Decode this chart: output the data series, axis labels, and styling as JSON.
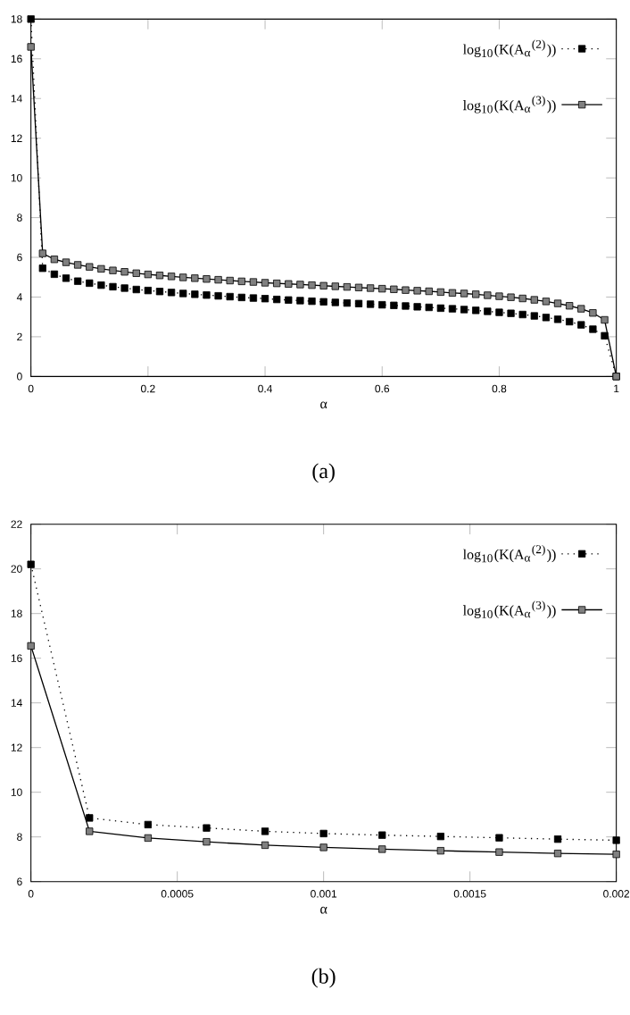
{
  "chart_data": [
    {
      "type": "line",
      "xlabel": "α",
      "annotations": [
        "(a)"
      ],
      "xlim": [
        0,
        1
      ],
      "ylim": [
        0,
        18
      ],
      "xticks": [
        0,
        0.2,
        0.4,
        0.6,
        0.8,
        1
      ],
      "yticks": [
        0,
        2,
        4,
        6,
        8,
        10,
        12,
        14,
        16,
        18
      ],
      "legend": "top right",
      "grid": false,
      "marker": "square",
      "x": [
        0,
        0.02,
        0.04,
        0.06,
        0.08,
        0.1,
        0.12,
        0.14,
        0.16,
        0.18,
        0.2,
        0.22,
        0.24,
        0.26,
        0.28,
        0.3,
        0.32,
        0.34,
        0.36,
        0.38,
        0.4,
        0.42,
        0.44,
        0.46,
        0.48,
        0.5,
        0.52,
        0.54,
        0.56,
        0.58,
        0.6,
        0.62,
        0.64,
        0.66,
        0.68,
        0.7,
        0.72,
        0.74,
        0.76,
        0.78,
        0.8,
        0.82,
        0.84,
        0.86,
        0.88,
        0.9,
        0.92,
        0.94,
        0.96,
        0.98,
        1
      ],
      "series": [
        {
          "name": "log$_{10}$(K(A$_{α}$$^{(2)}$))",
          "color": "#000000",
          "line_style": "dotted",
          "values": [
            18.0,
            5.45,
            5.15,
            4.95,
            4.8,
            4.7,
            4.6,
            4.52,
            4.45,
            4.38,
            4.33,
            4.28,
            4.23,
            4.18,
            4.14,
            4.1,
            4.06,
            4.02,
            3.98,
            3.95,
            3.92,
            3.88,
            3.85,
            3.82,
            3.79,
            3.76,
            3.73,
            3.7,
            3.67,
            3.64,
            3.61,
            3.58,
            3.55,
            3.51,
            3.48,
            3.44,
            3.41,
            3.37,
            3.33,
            3.28,
            3.23,
            3.18,
            3.12,
            3.05,
            2.97,
            2.88,
            2.76,
            2.6,
            2.38,
            2.05,
            0
          ]
        },
        {
          "name": "log$_{10}$(K(A$_{α}$$^{(3)}$))",
          "color": "#808080",
          "line_style": "solid",
          "values": [
            16.6,
            6.2,
            5.9,
            5.75,
            5.62,
            5.52,
            5.42,
            5.34,
            5.27,
            5.2,
            5.14,
            5.09,
            5.04,
            4.99,
            4.95,
            4.91,
            4.87,
            4.83,
            4.79,
            4.76,
            4.72,
            4.69,
            4.66,
            4.63,
            4.6,
            4.57,
            4.54,
            4.51,
            4.48,
            4.45,
            4.42,
            4.39,
            4.35,
            4.32,
            4.29,
            4.25,
            4.21,
            4.18,
            4.14,
            4.09,
            4.04,
            3.99,
            3.93,
            3.86,
            3.78,
            3.68,
            3.56,
            3.41,
            3.2,
            2.85,
            0
          ]
        }
      ]
    },
    {
      "type": "line",
      "xlabel": "α",
      "annotations": [
        "(b)"
      ],
      "xlim": [
        0,
        0.002
      ],
      "ylim": [
        6,
        22
      ],
      "xticks": [
        0,
        0.0005,
        0.001,
        0.0015,
        0.002
      ],
      "yticks": [
        6,
        8,
        10,
        12,
        14,
        16,
        18,
        20,
        22
      ],
      "legend": "top right",
      "grid": false,
      "marker": "square",
      "x": [
        0,
        0.0002,
        0.0004,
        0.0006,
        0.0008,
        0.001,
        0.0012,
        0.0014,
        0.0016,
        0.0018,
        0.002
      ],
      "series": [
        {
          "name": "log$_{10}$(K(A$_{α}$$^{(2)}$))",
          "color": "#000000",
          "line_style": "dotted",
          "values": [
            20.2,
            8.85,
            8.55,
            8.4,
            8.25,
            8.15,
            8.08,
            8.02,
            7.96,
            7.9,
            7.85
          ]
        },
        {
          "name": "log$_{10}$(K(A$_{α}$$^{(3)}$))",
          "color": "#808080",
          "line_style": "solid",
          "values": [
            16.55,
            8.25,
            7.95,
            7.78,
            7.63,
            7.53,
            7.45,
            7.38,
            7.32,
            7.26,
            7.22
          ]
        }
      ]
    }
  ]
}
